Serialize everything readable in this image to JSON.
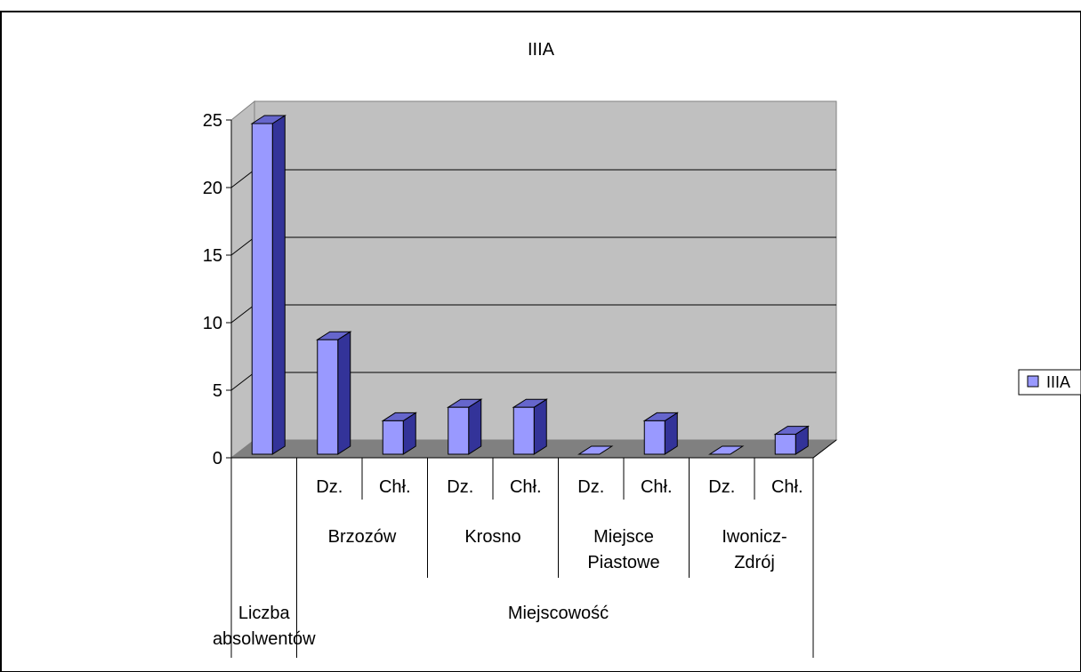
{
  "chart_data": {
    "type": "bar",
    "title": "IIIA",
    "categories": [
      {
        "group": "Liczba absolwentów",
        "sub": "",
        "city": ""
      },
      {
        "group": "Miejscowość",
        "sub": "Dz.",
        "city": "Brzozów"
      },
      {
        "group": "Miejscowość",
        "sub": "Chł.",
        "city": "Brzozów"
      },
      {
        "group": "Miejscowość",
        "sub": "Dz.",
        "city": "Krosno"
      },
      {
        "group": "Miejscowość",
        "sub": "Chł.",
        "city": "Krosno"
      },
      {
        "group": "Miejscowość",
        "sub": "Dz.",
        "city": "Miejsce Piastowe"
      },
      {
        "group": "Miejscowość",
        "sub": "Chł.",
        "city": "Miejsce Piastowe"
      },
      {
        "group": "Miejscowość",
        "sub": "Dz.",
        "city": "Iwonicz-Zdrój"
      },
      {
        "group": "Miejscowość",
        "sub": "Chł.",
        "city": "Iwonicz-Zdrój"
      }
    ],
    "series": [
      {
        "name": "IIIA",
        "values": [
          25,
          9,
          3,
          4,
          4,
          0,
          3,
          0,
          2
        ]
      }
    ],
    "ylim": [
      0,
      25
    ],
    "yticks": [
      0,
      5,
      10,
      15,
      20,
      25
    ],
    "grid": true,
    "legend": "right",
    "colors": {
      "bar_front": "#9999ff",
      "bar_side": "#333399",
      "bar_top": "#6666cc",
      "wall": "#c0c0c0",
      "floor": "#808080",
      "gridline": "#000000"
    }
  }
}
